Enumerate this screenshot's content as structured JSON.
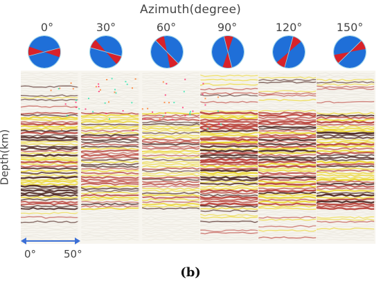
{
  "title": "Azimuth(degree)",
  "azimuths": [
    "0°",
    "30°",
    "60°",
    "90°",
    "120°",
    "150°"
  ],
  "y_axis_label": "Depth(km)",
  "scale_bar": {
    "start_label": "0°",
    "end_label": "50°"
  },
  "caption": "(b)",
  "colors": {
    "beachball_blue": "#1f6fd8",
    "beachball_red": "#d8222a",
    "wiggle_dark": "#3a0f0a",
    "wiggle_red": "#b3322a",
    "wiggle_yellow": "#e9d21a",
    "scale_arrow": "#3b6fd6"
  }
}
